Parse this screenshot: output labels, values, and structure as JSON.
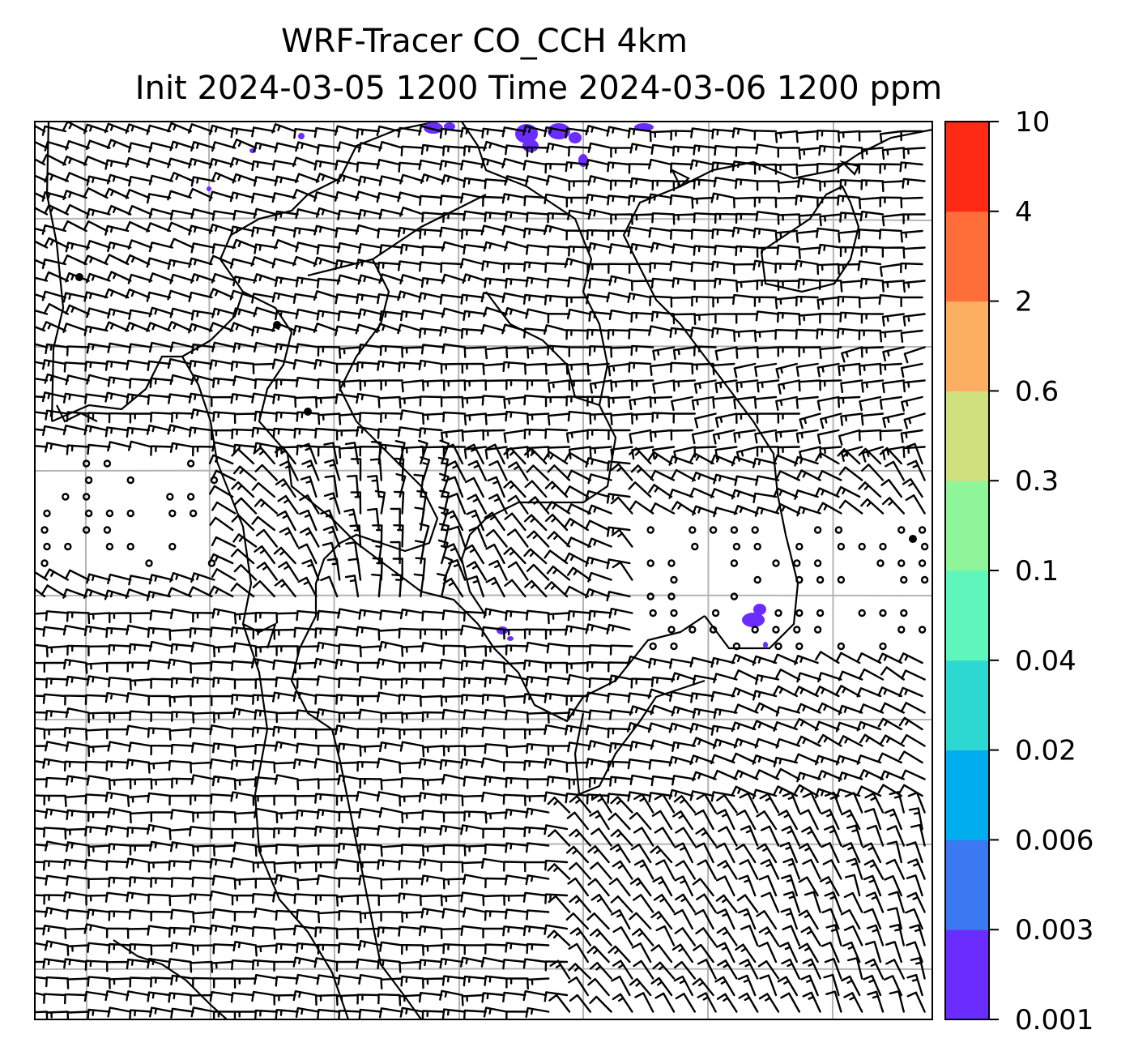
{
  "title_line1": "WRF-Tracer CO_CCH 4km",
  "title_line2": "Init 2024-03-05 1200 Time 2024-03-06 1200 ppm",
  "colorbar": {
    "ticks": [
      "0.001",
      "0.003",
      "0.006",
      "0.02",
      "0.04",
      "0.1",
      "0.3",
      "0.6",
      "2",
      "4",
      "10"
    ],
    "colors": [
      "#6a2cff",
      "#3a79f2",
      "#00aeef",
      "#2dd7d2",
      "#5ef6bd",
      "#8ff59a",
      "#d0e07f",
      "#fcae61",
      "#ff6e38",
      "#ff2a16"
    ]
  },
  "map": {
    "field": "CO_CCH tracer concentration",
    "overlay": "wind barbs",
    "gridlines": true,
    "plume_color": "#6a2cff"
  }
}
